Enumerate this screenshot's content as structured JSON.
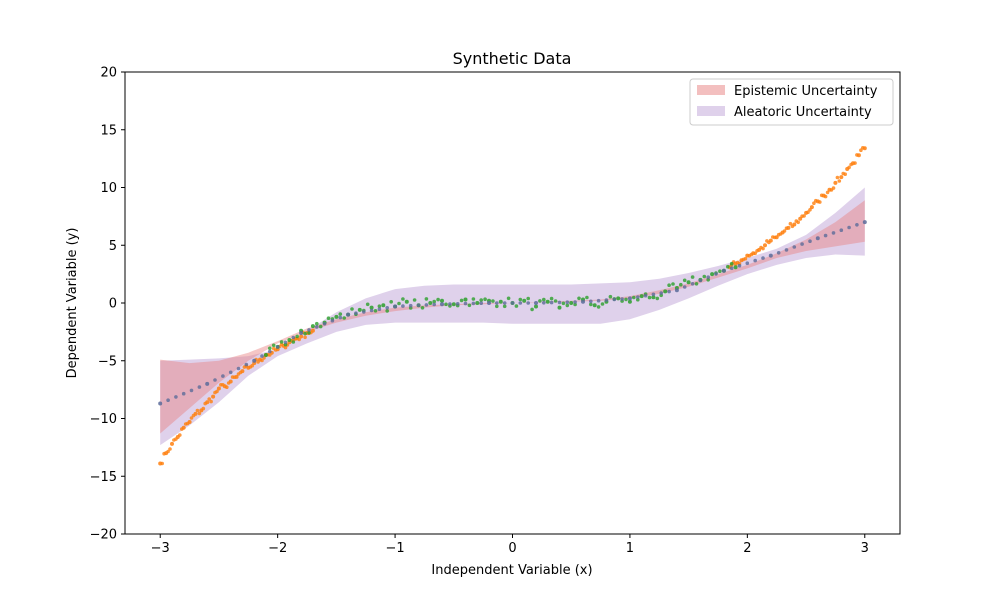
{
  "chart_data": {
    "type": "scatter",
    "title": "Synthetic Data",
    "xlabel": "Independent Variable (x)",
    "ylabel": "Dependent Variable (y)",
    "xlim": [
      -3.3,
      3.3
    ],
    "ylim": [
      -20,
      20
    ],
    "xticks": [
      -3,
      -2,
      -1,
      0,
      1,
      2,
      3
    ],
    "yticks": [
      -20,
      -15,
      -10,
      -5,
      0,
      5,
      10,
      15,
      20
    ],
    "xtick_labels": [
      "−3",
      "−2",
      "−1",
      "0",
      "1",
      "2",
      "3"
    ],
    "ytick_labels": [
      "−20",
      "−15",
      "−10",
      "−5",
      "0",
      "5",
      "10",
      "15",
      "20"
    ],
    "grid": false,
    "legend_position": "top-right",
    "series": [
      {
        "name": "Aleatoric Uncertainty",
        "kind": "band",
        "color": "#9467bd",
        "x": [
          -3.0,
          -2.75,
          -2.5,
          -2.25,
          -2.0,
          -1.75,
          -1.5,
          -1.25,
          -1.0,
          -0.75,
          -0.5,
          -0.25,
          0.0,
          0.25,
          0.5,
          0.75,
          1.0,
          1.25,
          1.5,
          1.75,
          2.0,
          2.25,
          2.5,
          2.75,
          3.0
        ],
        "lower": [
          -12.3,
          -10.6,
          -8.6,
          -6.3,
          -4.6,
          -3.5,
          -2.5,
          -1.9,
          -1.7,
          -1.7,
          -1.7,
          -1.7,
          -1.8,
          -1.8,
          -1.8,
          -1.8,
          -1.4,
          -0.6,
          0.4,
          1.5,
          2.5,
          3.3,
          3.9,
          4.2,
          4.1
        ],
        "upper": [
          -5.0,
          -4.9,
          -4.8,
          -4.6,
          -4.0,
          -2.4,
          -0.8,
          0.4,
          1.2,
          1.5,
          1.6,
          1.6,
          1.6,
          1.6,
          1.6,
          1.7,
          1.8,
          2.1,
          2.6,
          3.2,
          3.9,
          4.7,
          5.9,
          7.8,
          10.0
        ]
      },
      {
        "name": "Epistemic Uncertainty",
        "kind": "band",
        "color": "#e88080",
        "x": [
          -3.0,
          -2.75,
          -2.5,
          -2.25,
          -2.0,
          -1.75,
          -1.5,
          -1.25,
          -1.0,
          -0.75,
          -0.5,
          -0.25,
          0.0,
          0.25,
          0.5,
          0.75,
          1.0,
          1.25,
          1.5,
          1.75,
          2.0,
          2.25,
          2.5,
          2.75,
          3.0
        ],
        "lower": [
          -11.3,
          -9.1,
          -6.9,
          -5.0,
          -3.5,
          -2.5,
          -1.7,
          -1.1,
          -0.7,
          -0.4,
          -0.2,
          -0.1,
          0.0,
          0.05,
          0.1,
          0.2,
          0.4,
          0.8,
          1.4,
          2.2,
          3.0,
          3.9,
          4.5,
          4.9,
          5.3
        ],
        "upper": [
          -4.9,
          -5.2,
          -5.0,
          -4.3,
          -3.3,
          -2.2,
          -1.4,
          -0.8,
          -0.4,
          -0.2,
          -0.1,
          0.0,
          0.0,
          0.1,
          0.2,
          0.3,
          0.6,
          1.1,
          1.7,
          2.5,
          3.3,
          4.3,
          5.5,
          7.0,
          8.9
        ]
      },
      {
        "name": "",
        "kind": "points",
        "color": "#ff7f0e",
        "function": "cubic",
        "x": [
          -3.0,
          -2.95,
          -2.9,
          -2.85,
          -2.8,
          -2.75,
          -2.7,
          -2.65,
          -2.6,
          -2.55,
          -2.5,
          -2.45,
          -2.4,
          -2.35,
          -2.3,
          -2.25,
          -2.2,
          -2.15,
          -2.1,
          -2.05,
          -2.0,
          -1.95,
          -1.9,
          -1.85,
          -1.8,
          -1.75,
          -1.7,
          1.85,
          1.9,
          1.95,
          2.0,
          2.05,
          2.1,
          2.15,
          2.2,
          2.25,
          2.3,
          2.35,
          2.4,
          2.45,
          2.5,
          2.55,
          2.6,
          2.65,
          2.7,
          2.75,
          2.8,
          2.85,
          2.9,
          2.95,
          3.0
        ],
        "y": [
          -13.9,
          -13.0,
          -12.2,
          -11.6,
          -10.8,
          -10.3,
          -9.6,
          -9.3,
          -8.6,
          -8.1,
          -7.4,
          -7.2,
          -6.8,
          -6.4,
          -5.9,
          -5.6,
          -5.2,
          -4.9,
          -4.5,
          -4.3,
          -4.0,
          -3.7,
          -3.4,
          -3.1,
          -2.9,
          -2.6,
          -2.4,
          3.1,
          3.4,
          3.7,
          4.1,
          4.3,
          4.6,
          5.0,
          5.4,
          5.7,
          6.1,
          6.5,
          6.8,
          7.3,
          7.8,
          8.3,
          8.8,
          9.3,
          9.8,
          10.4,
          10.9,
          11.6,
          12.1,
          12.8,
          13.4
        ]
      },
      {
        "name": "",
        "kind": "points",
        "color": "#2ca02c",
        "function": "flat",
        "x": [
          -2.1,
          -2.0,
          -1.9,
          -1.8,
          -1.7,
          -1.6,
          -1.5,
          -1.4,
          -1.3,
          -1.2,
          -1.1,
          -1.0,
          -0.9,
          -0.8,
          -0.7,
          -0.6,
          -0.5,
          -0.4,
          -0.3,
          -0.2,
          -0.1,
          0.0,
          0.1,
          0.2,
          0.3,
          0.4,
          0.5,
          0.6,
          0.7,
          0.8,
          0.9,
          1.0,
          1.1,
          1.2,
          1.3,
          1.4,
          1.5,
          1.6,
          1.7,
          1.8,
          1.9
        ],
        "y": [
          -4.5,
          -3.8,
          -3.2,
          -2.4,
          -2.0,
          -1.7,
          -1.2,
          -1.0,
          -0.6,
          -0.4,
          -0.2,
          -0.3,
          0.1,
          -0.2,
          0.0,
          0.2,
          -0.1,
          0.3,
          0.0,
          0.2,
          0.1,
          0.0,
          0.2,
          -0.3,
          0.1,
          -0.4,
          0.0,
          0.3,
          -0.2,
          0.1,
          0.4,
          0.1,
          0.6,
          0.5,
          1.0,
          1.3,
          1.8,
          2.0,
          2.5,
          2.8,
          3.1
        ]
      },
      {
        "name": "",
        "kind": "points",
        "color": "#5b6b9a",
        "function": "mean",
        "x": [
          -3.0,
          -2.6,
          -2.2,
          -1.8,
          -1.4,
          -1.0,
          -0.6,
          -0.2,
          0.2,
          0.6,
          1.0,
          1.4,
          1.8,
          2.2,
          2.6,
          3.0
        ],
        "y": [
          -8.7,
          -7.0,
          -5.0,
          -2.6,
          -1.0,
          -0.3,
          -0.1,
          0.0,
          0.0,
          0.1,
          0.4,
          1.1,
          2.8,
          4.1,
          5.6,
          7.0
        ]
      }
    ],
    "legend": [
      {
        "label": "Epistemic Uncertainty",
        "color": "#e88080"
      },
      {
        "label": "Aleatoric Uncertainty",
        "color": "#9467bd"
      }
    ]
  }
}
